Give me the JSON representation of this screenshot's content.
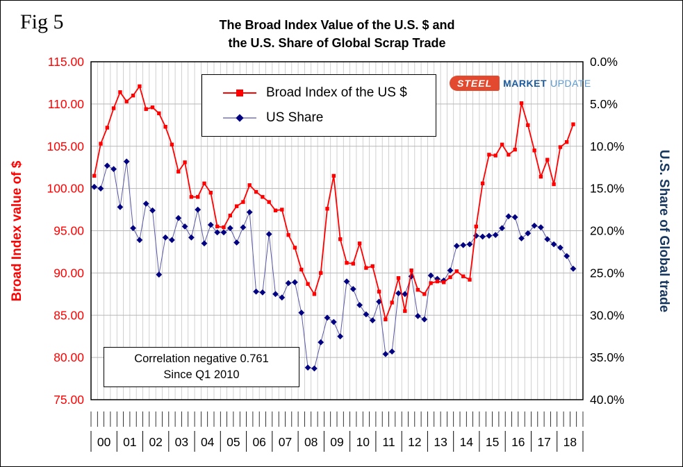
{
  "figure": {
    "fig_label": "Fig 5",
    "title_line1": "The Broad Index Value of the U.S. $ and",
    "title_line2": "the U.S. Share of Global Scrap Trade"
  },
  "axes": {
    "left_title": "Broad Index value of $",
    "right_title": "U.S. Share of Global trade",
    "left_tick_labels": [
      "115.00",
      "110.00",
      "105.00",
      "100.00",
      "95.00",
      "90.00",
      "85.00",
      "80.00",
      "75.00"
    ],
    "left_tick_values": [
      115,
      110,
      105,
      100,
      95,
      90,
      85,
      80,
      75
    ],
    "right_tick_labels": [
      "0.0%",
      "5.0%",
      "10.0%",
      "15.0%",
      "20.0%",
      "25.0%",
      "30.0%",
      "35.0%",
      "40.0%"
    ],
    "right_tick_values": [
      0,
      5,
      10,
      15,
      20,
      25,
      30,
      35,
      40
    ],
    "x_year_labels": [
      "00",
      "01",
      "02",
      "03",
      "04",
      "05",
      "06",
      "07",
      "08",
      "09",
      "10",
      "11",
      "12",
      "13",
      "14",
      "15",
      "16",
      "17",
      "18"
    ]
  },
  "legend": {
    "items": [
      {
        "label": "Broad Index of the US $",
        "marker": "square",
        "color": "#FF0000"
      },
      {
        "label": "US  Share",
        "marker": "diamond",
        "color": "#000080"
      }
    ]
  },
  "annotation": {
    "line1": "Correlation negative 0.761",
    "line2": "Since Q1 2010"
  },
  "logo": {
    "steel": "STEEL",
    "market": "MARKET",
    "update": "UPDATE"
  },
  "colors": {
    "broad_index": "#FF0000",
    "us_share_line": "#5858a8",
    "us_share_marker": "#000080",
    "grid": "#c4c4c4",
    "right_axis_title": "#17375E",
    "left_axis_labels": "#FF0000"
  },
  "chart_data": {
    "type": "line",
    "title": "The Broad Index Value of the U.S. $ and the U.S. Share of Global Scrap Trade",
    "x": [
      "00Q1",
      "00Q2",
      "00Q3",
      "00Q4",
      "01Q1",
      "01Q2",
      "01Q3",
      "01Q4",
      "02Q1",
      "02Q2",
      "02Q3",
      "02Q4",
      "03Q1",
      "03Q2",
      "03Q3",
      "03Q4",
      "04Q1",
      "04Q2",
      "04Q3",
      "04Q4",
      "05Q1",
      "05Q2",
      "05Q3",
      "05Q4",
      "06Q1",
      "06Q2",
      "06Q3",
      "06Q4",
      "07Q1",
      "07Q2",
      "07Q3",
      "07Q4",
      "08Q1",
      "08Q2",
      "08Q3",
      "08Q4",
      "09Q1",
      "09Q2",
      "09Q3",
      "09Q4",
      "10Q1",
      "10Q2",
      "10Q3",
      "10Q4",
      "11Q1",
      "11Q2",
      "11Q3",
      "11Q4",
      "12Q1",
      "12Q2",
      "12Q3",
      "12Q4",
      "13Q1",
      "13Q2",
      "13Q3",
      "13Q4",
      "14Q1",
      "14Q2",
      "14Q3",
      "14Q4",
      "15Q1",
      "15Q2",
      "15Q3",
      "15Q4",
      "16Q1",
      "16Q2",
      "16Q3",
      "16Q4",
      "17Q1",
      "17Q2",
      "17Q3",
      "17Q4",
      "18Q1",
      "18Q2",
      "18Q3"
    ],
    "series": [
      {
        "name": "Broad Index of the US $",
        "axis": "left",
        "values": [
          101.5,
          105.3,
          107.2,
          109.5,
          111.4,
          110.3,
          111.0,
          112.1,
          109.4,
          109.6,
          108.9,
          107.3,
          105.2,
          102.0,
          103.1,
          99.0,
          99.0,
          100.6,
          99.5,
          95.5,
          95.4,
          96.8,
          97.9,
          98.4,
          100.4,
          99.6,
          99.0,
          98.4,
          97.4,
          97.5,
          94.5,
          93.0,
          90.4,
          88.7,
          87.5,
          90.0,
          97.6,
          101.5,
          94.0,
          91.2,
          91.1,
          93.5,
          90.6,
          90.8,
          87.8,
          84.5,
          86.5,
          89.4,
          85.5,
          90.3,
          88.0,
          87.5,
          88.8,
          89.0,
          88.9,
          89.5,
          90.2,
          89.6,
          89.2,
          95.5,
          100.6,
          104.0,
          103.9,
          105.2,
          104.0,
          104.6,
          110.1,
          107.5,
          104.5,
          101.4,
          103.4,
          100.5,
          104.9,
          105.5,
          107.6
        ]
      },
      {
        "name": "US  Share",
        "axis": "right",
        "values": [
          14.8,
          15.0,
          12.3,
          12.7,
          17.2,
          11.8,
          19.7,
          21.1,
          16.8,
          17.6,
          25.2,
          20.8,
          21.1,
          18.5,
          19.5,
          20.8,
          17.5,
          21.5,
          19.3,
          20.2,
          20.2,
          19.7,
          21.4,
          19.6,
          17.8,
          27.2,
          27.3,
          20.4,
          27.5,
          27.9,
          26.2,
          26.1,
          29.7,
          36.2,
          36.3,
          33.2,
          30.3,
          30.8,
          32.5,
          26.0,
          26.9,
          28.8,
          29.9,
          30.6,
          28.4,
          34.6,
          34.3,
          27.4,
          27.5,
          25.4,
          30.1,
          30.5,
          25.3,
          25.7,
          25.9,
          24.7,
          21.8,
          21.7,
          21.6,
          20.6,
          20.7,
          20.6,
          20.5,
          19.7,
          18.3,
          18.4,
          20.9,
          20.3,
          19.4,
          19.6,
          21.0,
          21.6,
          22.0,
          23.0,
          24.5
        ]
      }
    ],
    "left_axis_range": [
      75,
      115
    ],
    "right_axis_range": [
      0,
      40
    ],
    "right_axis_inverted": true,
    "grid": true,
    "legend_position": "top-center"
  }
}
